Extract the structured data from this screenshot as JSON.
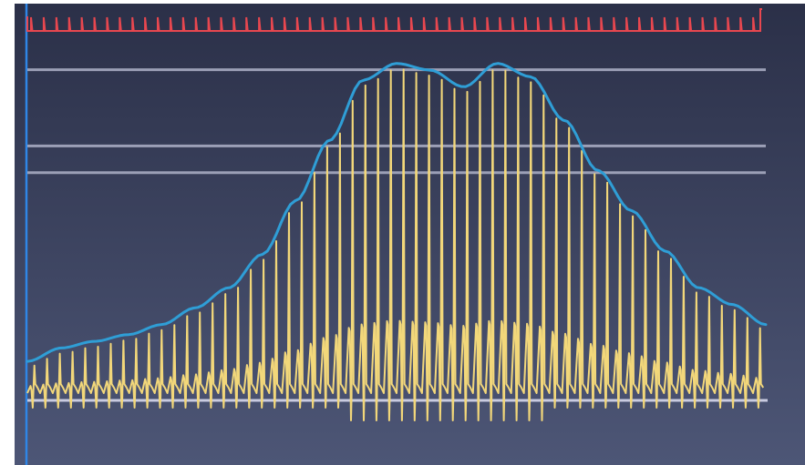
{
  "colors": {
    "background_top": "#2b3048",
    "background_bottom": "#4d5676",
    "trigger_trace": "#e8474f",
    "reference_lines": "#aeb2c8",
    "signal_trace": "#f2d77a",
    "envelope_trace": "#2f9ed6",
    "left_axis": "#2f86e6"
  },
  "signal": {
    "envelope_levels": [
      0.1,
      0.14,
      0.16,
      0.18,
      0.21,
      0.26,
      0.32,
      0.42,
      0.58,
      0.76,
      0.94,
      0.99,
      0.97,
      0.92,
      0.99,
      0.95,
      0.82,
      0.67,
      0.55,
      0.43,
      0.32,
      0.27,
      0.21
    ],
    "reference_levels": [
      0.99,
      0.76,
      0.68
    ]
  }
}
